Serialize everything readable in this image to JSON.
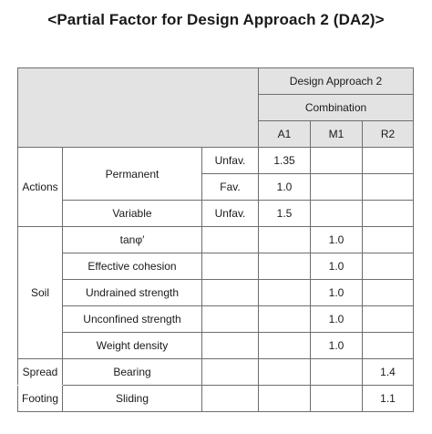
{
  "title": "<Partial Factor for Design Approach 2 (DA2)>",
  "header": {
    "approach": "Design Approach 2",
    "combination": "Combination",
    "columns": [
      "A1",
      "M1",
      "R2"
    ]
  },
  "groups": {
    "actions": "Actions",
    "soil": "Soil",
    "spread": "Spread",
    "footing": "Footing"
  },
  "rows": {
    "permanent": {
      "label": "Permanent"
    },
    "permanent_unfav": {
      "type": "Unfav.",
      "a1": "1.35",
      "m1": "",
      "r2": ""
    },
    "permanent_fav": {
      "type": "Fav.",
      "a1": "1.0",
      "m1": "",
      "r2": ""
    },
    "variable": {
      "label": "Variable",
      "type": "Unfav.",
      "a1": "1.5",
      "m1": "",
      "r2": ""
    },
    "tan_phi": {
      "label": "tanφ′",
      "type": "",
      "a1": "",
      "m1": "1.0",
      "r2": ""
    },
    "effective_cohesion": {
      "label": "Effective cohesion",
      "type": "",
      "a1": "",
      "m1": "1.0",
      "r2": ""
    },
    "undrained_strength": {
      "label": "Undrained strength",
      "type": "",
      "a1": "",
      "m1": "1.0",
      "r2": ""
    },
    "unconfined_strength": {
      "label": "Unconfined strength",
      "type": "",
      "a1": "",
      "m1": "1.0",
      "r2": ""
    },
    "weight_density": {
      "label": "Weight density",
      "type": "",
      "a1": "",
      "m1": "1.0",
      "r2": ""
    },
    "bearing": {
      "label": "Bearing",
      "type": "",
      "a1": "",
      "m1": "",
      "r2": "1.4"
    },
    "sliding": {
      "label": "Sliding",
      "type": "",
      "a1": "",
      "m1": "",
      "r2": "1.1"
    }
  }
}
